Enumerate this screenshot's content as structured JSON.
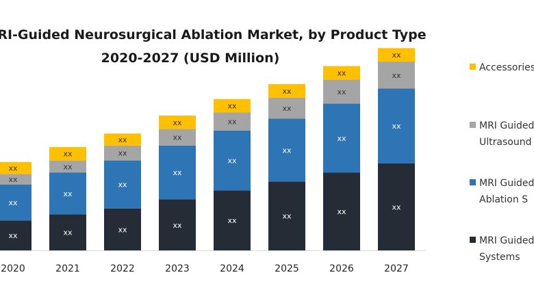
{
  "chart_data": {
    "type": "bar",
    "stacked": true,
    "title": "MRI-Guided Neurosurgical Ablation Market, by Product Type",
    "subtitle": "2020-2027 (USD Million)",
    "categories": [
      "2020",
      "2021",
      "2022",
      "2023",
      "2024",
      "2025",
      "2026",
      "2027"
    ],
    "legend_position": "right",
    "grid": false,
    "series": [
      {
        "name": "MRI Guided Laser Ablation Systems",
        "color": "#262c36",
        "values": [
          10,
          12,
          14,
          17,
          20,
          23,
          26,
          29
        ],
        "labels": [
          "xx",
          "xx",
          "xx",
          "xx",
          "xx",
          "xx",
          "xx",
          "xx"
        ]
      },
      {
        "name": "MRI Guided Laser Ablation Systems",
        "color": "#2e75b6",
        "values": [
          12,
          14,
          16,
          18,
          20,
          21,
          23,
          25
        ],
        "labels": [
          "xx",
          "xx",
          "xx",
          "xx",
          "xx",
          "xx",
          "xx",
          "xx"
        ]
      },
      {
        "name": "MRI Guided Focused Ultrasound Systems",
        "color": "#a5a5a5",
        "values": [
          3.5,
          4,
          5,
          5.5,
          6,
          7,
          8,
          9
        ],
        "labels": [
          "xx",
          "xx",
          "xx",
          "xx",
          "xx",
          "xx",
          "xx",
          "xx"
        ]
      },
      {
        "name": "Accessories",
        "color": "#ffc000",
        "values": [
          4,
          4.5,
          4,
          4.5,
          4.5,
          4.5,
          4.5,
          4.5
        ],
        "labels": [
          "xx",
          "xx",
          "xx",
          "xx",
          "xx",
          "xx",
          "xx",
          "xx"
        ]
      }
    ],
    "legend": [
      {
        "series": 3,
        "lines": [
          "Accessories"
        ]
      },
      {
        "series": 2,
        "lines": [
          "MRI Guided",
          "Ultrasound"
        ]
      },
      {
        "series": 1,
        "lines": [
          "MRI Guided",
          "Ablation S"
        ]
      },
      {
        "series": 0,
        "lines": [
          "MRI Guided",
          "Systems"
        ]
      }
    ]
  }
}
